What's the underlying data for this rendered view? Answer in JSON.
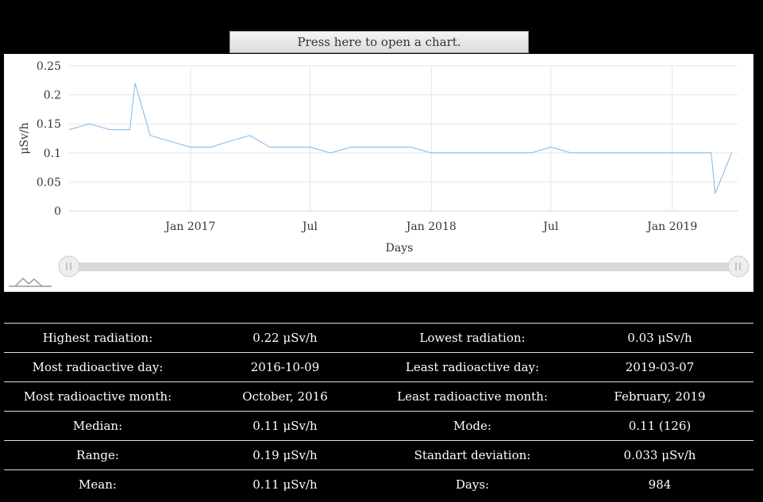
{
  "button": {
    "open_chart_label": "Press here to open a chart."
  },
  "chart_data": {
    "type": "line",
    "title": "",
    "xlabel": "Days",
    "ylabel": "μSv/h",
    "x_start": "2016-07-01",
    "x_end": "2019-04-10",
    "ylim": [
      0,
      0.25
    ],
    "yticks": [
      "0",
      "0.05",
      "0.1",
      "0.15",
      "0.2",
      "0.25"
    ],
    "xticks": [
      {
        "label": "Jan 2017",
        "date": "2017-01-01"
      },
      {
        "label": "Jul",
        "date": "2017-07-01"
      },
      {
        "label": "Jan 2018",
        "date": "2018-01-01"
      },
      {
        "label": "Jul",
        "date": "2018-07-01"
      },
      {
        "label": "Jan 2019",
        "date": "2019-01-01"
      }
    ],
    "grid": true,
    "series": [
      {
        "color": "#7cb5ec",
        "points": [
          [
            "2016-07-01",
            0.14
          ],
          [
            "2016-08-01",
            0.15
          ],
          [
            "2016-09-01",
            0.14
          ],
          [
            "2016-10-01",
            0.14
          ],
          [
            "2016-10-09",
            0.22
          ],
          [
            "2016-11-01",
            0.13
          ],
          [
            "2016-12-01",
            0.12
          ],
          [
            "2017-01-01",
            0.11
          ],
          [
            "2017-02-01",
            0.11
          ],
          [
            "2017-03-01",
            0.12
          ],
          [
            "2017-04-01",
            0.13
          ],
          [
            "2017-05-01",
            0.11
          ],
          [
            "2017-06-01",
            0.11
          ],
          [
            "2017-07-01",
            0.11
          ],
          [
            "2017-08-01",
            0.1
          ],
          [
            "2017-09-01",
            0.11
          ],
          [
            "2017-10-01",
            0.11
          ],
          [
            "2017-11-01",
            0.11
          ],
          [
            "2017-12-01",
            0.11
          ],
          [
            "2018-01-01",
            0.1
          ],
          [
            "2018-02-01",
            0.1
          ],
          [
            "2018-03-01",
            0.1
          ],
          [
            "2018-04-01",
            0.1
          ],
          [
            "2018-05-01",
            0.1
          ],
          [
            "2018-06-01",
            0.1
          ],
          [
            "2018-07-01",
            0.11
          ],
          [
            "2018-08-01",
            0.1
          ],
          [
            "2018-09-01",
            0.1
          ],
          [
            "2018-10-01",
            0.1
          ],
          [
            "2018-11-01",
            0.1
          ],
          [
            "2018-12-01",
            0.1
          ],
          [
            "2019-01-01",
            0.1
          ],
          [
            "2019-02-01",
            0.1
          ],
          [
            "2019-03-01",
            0.1
          ],
          [
            "2019-03-07",
            0.03
          ],
          [
            "2019-04-01",
            0.1
          ]
        ]
      }
    ]
  },
  "navigator": {
    "left_handle_icon": "slider-handle-icon",
    "right_handle_icon": "slider-handle-icon",
    "logo_icon": "mountain-logo-icon"
  },
  "stats": {
    "rows": [
      {
        "label1": "Highest radiation:",
        "value1": "0.22 μSv/h",
        "label2": "Lowest radiation:",
        "value2": "0.03 μSv/h"
      },
      {
        "label1": "Most radioactive day:",
        "value1": "2016-10-09",
        "label2": "Least radioactive day:",
        "value2": "2019-03-07"
      },
      {
        "label1": "Most radioactive month:",
        "value1": "October, 2016",
        "label2": "Least radioactive month:",
        "value2": "February, 2019"
      },
      {
        "label1": "Median:",
        "value1": "0.11 μSv/h",
        "label2": "Mode:",
        "value2": "0.11 (126)"
      },
      {
        "label1": "Range:",
        "value1": "0.19 μSv/h",
        "label2": "Standart deviation:",
        "value2": "0.033 μSv/h"
      },
      {
        "label1": "Mean:",
        "value1": "0.11 μSv/h",
        "label2": "Days:",
        "value2": "984"
      }
    ]
  }
}
